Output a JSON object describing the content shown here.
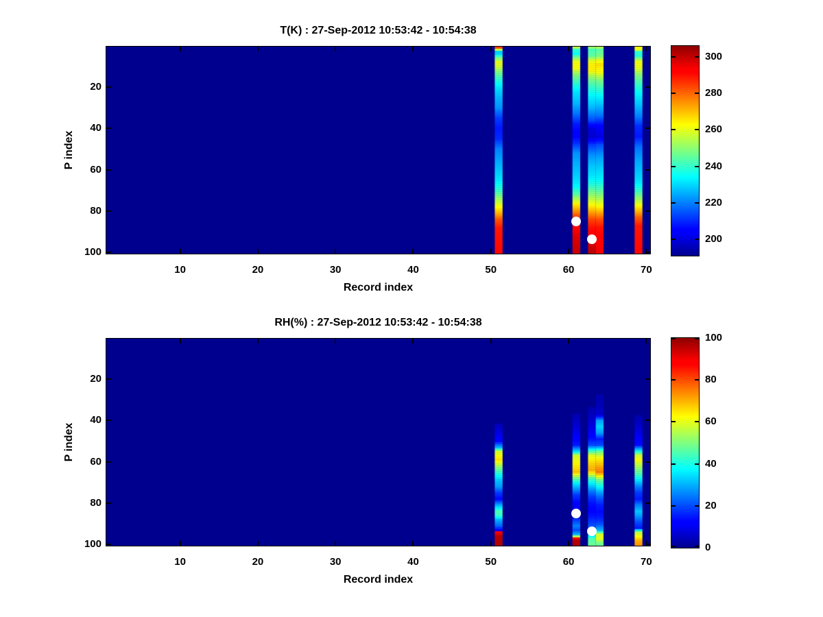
{
  "figure": {
    "background": "#ffffff",
    "axis_color": "#000000",
    "text_color": "#000000",
    "colormap_min_color": "#00008f",
    "marker_color": "#ffffff"
  },
  "chart_data": [
    {
      "type": "heatmap",
      "title": "T(K) : 27-Sep-2012 10:53:42 - 10:54:38",
      "xlabel": "Record index",
      "ylabel": "P index",
      "x_ticks": [
        10,
        20,
        30,
        40,
        50,
        60,
        70
      ],
      "y_ticks": [
        20,
        40,
        60,
        80,
        100
      ],
      "xlim": [
        0.5,
        70.5
      ],
      "ylim": [
        0.5,
        100.5
      ],
      "y_axis_direction": "reversed",
      "colormap": "jet",
      "grid": false,
      "clim": [
        191,
        306
      ],
      "colorbar_ticks": [
        200,
        220,
        240,
        260,
        280,
        300
      ],
      "background_value": 191,
      "stripes": [
        {
          "record_start": 51,
          "record_end": 51,
          "profile": [
            [
              0.5,
              285
            ],
            [
              1.5,
              284
            ],
            [
              2.5,
              228
            ],
            [
              4,
              230
            ],
            [
              6,
              248
            ],
            [
              8,
              260
            ],
            [
              10,
              258
            ],
            [
              13,
              248
            ],
            [
              16,
              240
            ],
            [
              20,
              232
            ],
            [
              25,
              226
            ],
            [
              30,
              222
            ],
            [
              35,
              212
            ],
            [
              40,
              208
            ],
            [
              45,
              210
            ],
            [
              50,
              220
            ],
            [
              55,
              224
            ],
            [
              60,
              228
            ],
            [
              65,
              232
            ],
            [
              70,
              240
            ],
            [
              74,
              252
            ],
            [
              78,
              263
            ],
            [
              81,
              272
            ],
            [
              84,
              282
            ],
            [
              88,
              289
            ],
            [
              100,
              291
            ]
          ]
        },
        {
          "record_start": 61,
          "record_end": 61,
          "profile": [
            [
              0.5,
              262
            ],
            [
              2,
              240
            ],
            [
              4,
              235
            ],
            [
              6,
              250
            ],
            [
              8,
              262
            ],
            [
              11,
              262
            ],
            [
              14,
              250
            ],
            [
              18,
              240
            ],
            [
              22,
              232
            ],
            [
              28,
              226
            ],
            [
              33,
              218
            ],
            [
              38,
              208
            ],
            [
              43,
              204
            ],
            [
              47,
              210
            ],
            [
              52,
              222
            ],
            [
              58,
              226
            ],
            [
              64,
              230
            ],
            [
              68,
              234
            ],
            [
              72,
              245
            ],
            [
              76,
              262
            ],
            [
              79,
              272
            ],
            [
              82,
              282
            ],
            [
              85,
              289
            ],
            [
              88,
              293
            ],
            [
              92,
              297
            ],
            [
              100,
              300
            ]
          ]
        },
        {
          "record_start": 63,
          "record_end": 63,
          "profile": [
            [
              0.5,
              255
            ],
            [
              2,
              242
            ],
            [
              5,
              245
            ],
            [
              7,
              258
            ],
            [
              9,
              264
            ],
            [
              12,
              264
            ],
            [
              15,
              252
            ],
            [
              19,
              242
            ],
            [
              24,
              234
            ],
            [
              30,
              226
            ],
            [
              36,
              214
            ],
            [
              40,
              200
            ],
            [
              44,
              198
            ],
            [
              48,
              212
            ],
            [
              53,
              222
            ],
            [
              58,
              228
            ],
            [
              63,
              232
            ],
            [
              67,
              238
            ],
            [
              71,
              248
            ],
            [
              75,
              258
            ],
            [
              78,
              266
            ],
            [
              81,
              275
            ],
            [
              84,
              284
            ],
            [
              88,
              290
            ],
            [
              93,
              294
            ],
            [
              97,
              299
            ],
            [
              100,
              301
            ]
          ]
        },
        {
          "record_start": 64,
          "record_end": 64,
          "profile": [
            [
              0.5,
              258
            ],
            [
              2,
              244
            ],
            [
              5,
              248
            ],
            [
              7,
              260
            ],
            [
              9,
              266
            ],
            [
              13,
              262
            ],
            [
              17,
              248
            ],
            [
              22,
              238
            ],
            [
              28,
              228
            ],
            [
              34,
              218
            ],
            [
              39,
              204
            ],
            [
              44,
              200
            ],
            [
              48,
              214
            ],
            [
              54,
              224
            ],
            [
              60,
              230
            ],
            [
              65,
              234
            ],
            [
              70,
              244
            ],
            [
              74,
              254
            ],
            [
              78,
              264
            ],
            [
              81,
              274
            ],
            [
              84,
              283
            ],
            [
              88,
              290
            ],
            [
              94,
              293
            ],
            [
              100,
              295
            ]
          ]
        },
        {
          "record_start": 69,
          "record_end": 69,
          "profile": [
            [
              0.5,
              262
            ],
            [
              2,
              260
            ],
            [
              3,
              240
            ],
            [
              5,
              238
            ],
            [
              6,
              248
            ],
            [
              8,
              262
            ],
            [
              11,
              260
            ],
            [
              14,
              250
            ],
            [
              18,
              242
            ],
            [
              23,
              234
            ],
            [
              28,
              228
            ],
            [
              34,
              220
            ],
            [
              39,
              210
            ],
            [
              44,
              208
            ],
            [
              49,
              218
            ],
            [
              55,
              224
            ],
            [
              61,
              228
            ],
            [
              66,
              232
            ],
            [
              70,
              240
            ],
            [
              74,
              252
            ],
            [
              77,
              262
            ],
            [
              80,
              271
            ],
            [
              83,
              281
            ],
            [
              87,
              289
            ],
            [
              100,
              291
            ]
          ]
        }
      ],
      "markers": [
        {
          "record": 61,
          "p": 85,
          "color": "#ffffff"
        },
        {
          "record": 63,
          "p": 93.5,
          "color": "#ffffff"
        }
      ]
    },
    {
      "type": "heatmap",
      "title": "RH(%) : 27-Sep-2012 10:53:42 - 10:54:38",
      "xlabel": "Record index",
      "ylabel": "P index",
      "x_ticks": [
        10,
        20,
        30,
        40,
        50,
        60,
        70
      ],
      "y_ticks": [
        20,
        40,
        60,
        80,
        100
      ],
      "xlim": [
        0.5,
        70.5
      ],
      "ylim": [
        0.5,
        100.5
      ],
      "y_axis_direction": "reversed",
      "colormap": "jet",
      "grid": false,
      "clim": [
        0,
        100
      ],
      "colorbar_ticks": [
        0,
        20,
        40,
        60,
        80,
        100
      ],
      "background_value": 0,
      "stripes": [
        {
          "record_start": 51,
          "record_end": 51,
          "profile": [
            [
              42,
              4
            ],
            [
              46,
              8
            ],
            [
              50,
              12
            ],
            [
              53,
              30
            ],
            [
              55,
              58
            ],
            [
              57,
              62
            ],
            [
              59,
              65
            ],
            [
              61,
              58
            ],
            [
              63,
              50
            ],
            [
              66,
              40
            ],
            [
              69,
              32
            ],
            [
              72,
              28
            ],
            [
              75,
              18
            ],
            [
              78,
              13
            ],
            [
              81,
              30
            ],
            [
              84,
              45
            ],
            [
              86,
              42
            ],
            [
              88,
              30
            ],
            [
              91,
              22
            ],
            [
              93,
              12
            ],
            [
              94,
              90
            ],
            [
              96,
              96
            ],
            [
              100,
              97
            ]
          ]
        },
        {
          "record_start": 61,
          "record_end": 61,
          "profile": [
            [
              37,
              3
            ],
            [
              42,
              6
            ],
            [
              47,
              10
            ],
            [
              52,
              15
            ],
            [
              55,
              35
            ],
            [
              57,
              58
            ],
            [
              60,
              62
            ],
            [
              63,
              65
            ],
            [
              65,
              68
            ],
            [
              67,
              55
            ],
            [
              70,
              38
            ],
            [
              73,
              28
            ],
            [
              76,
              18
            ],
            [
              80,
              12
            ],
            [
              83,
              10
            ],
            [
              86,
              12
            ],
            [
              88,
              18
            ],
            [
              91,
              25
            ],
            [
              93,
              20
            ],
            [
              95,
              30
            ],
            [
              96,
              55
            ],
            [
              97,
              90
            ],
            [
              98,
              96
            ],
            [
              100,
              97
            ]
          ]
        },
        {
          "record_start": 63,
          "record_end": 63,
          "profile": [
            [
              34,
              3
            ],
            [
              38,
              5
            ],
            [
              43,
              8
            ],
            [
              48,
              12
            ],
            [
              52,
              20
            ],
            [
              55,
              45
            ],
            [
              57,
              60
            ],
            [
              60,
              65
            ],
            [
              62,
              68
            ],
            [
              64,
              70
            ],
            [
              66,
              60
            ],
            [
              68,
              45
            ],
            [
              71,
              35
            ],
            [
              74,
              25
            ],
            [
              77,
              18
            ],
            [
              80,
              14
            ],
            [
              83,
              12
            ],
            [
              86,
              14
            ],
            [
              89,
              18
            ],
            [
              92,
              22
            ],
            [
              95,
              30
            ],
            [
              97,
              45
            ],
            [
              100,
              48
            ]
          ]
        },
        {
          "record_start": 64,
          "record_end": 64,
          "profile": [
            [
              28,
              3
            ],
            [
              33,
              4
            ],
            [
              37,
              6
            ],
            [
              40,
              28
            ],
            [
              43,
              33
            ],
            [
              46,
              28
            ],
            [
              49,
              15
            ],
            [
              52,
              20
            ],
            [
              55,
              48
            ],
            [
              58,
              62
            ],
            [
              61,
              68
            ],
            [
              63,
              72
            ],
            [
              65,
              75
            ],
            [
              67,
              62
            ],
            [
              69,
              48
            ],
            [
              72,
              38
            ],
            [
              75,
              28
            ],
            [
              78,
              20
            ],
            [
              81,
              15
            ],
            [
              84,
              13
            ],
            [
              87,
              15
            ],
            [
              90,
              20
            ],
            [
              93,
              30
            ],
            [
              95,
              58
            ],
            [
              97,
              60
            ],
            [
              99,
              50
            ],
            [
              100,
              48
            ]
          ]
        },
        {
          "record_start": 69,
          "record_end": 69,
          "profile": [
            [
              38,
              3
            ],
            [
              43,
              6
            ],
            [
              48,
              10
            ],
            [
              52,
              14
            ],
            [
              55,
              40
            ],
            [
              57,
              58
            ],
            [
              59,
              62
            ],
            [
              61,
              58
            ],
            [
              63,
              52
            ],
            [
              66,
              45
            ],
            [
              69,
              35
            ],
            [
              72,
              25
            ],
            [
              75,
              18
            ],
            [
              78,
              15
            ],
            [
              81,
              25
            ],
            [
              84,
              32
            ],
            [
              86,
              28
            ],
            [
              89,
              20
            ],
            [
              92,
              15
            ],
            [
              94,
              55
            ],
            [
              96,
              62
            ],
            [
              98,
              70
            ],
            [
              100,
              73
            ]
          ]
        }
      ],
      "markers": [
        {
          "record": 61,
          "p": 85,
          "color": "#ffffff"
        },
        {
          "record": 63,
          "p": 93.5,
          "color": "#ffffff"
        }
      ]
    }
  ]
}
